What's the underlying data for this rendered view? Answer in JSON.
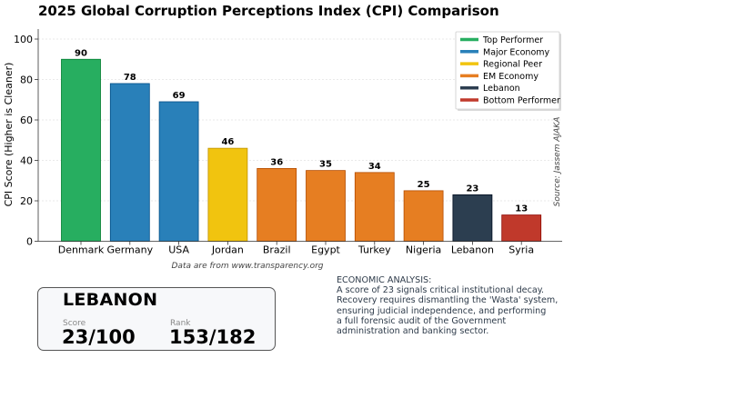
{
  "chart_data": {
    "type": "bar",
    "title": "2025 Global Corruption Perceptions Index (CPI) Comparison",
    "xlabel": "",
    "ylabel": "CPI Score (Higher is Cleaner)",
    "ylim": [
      0,
      105
    ],
    "yticks": [
      0,
      20,
      40,
      60,
      80,
      100
    ],
    "grid": true,
    "categories": [
      "Denmark",
      "Germany",
      "USA",
      "Jordan",
      "Brazil",
      "Egypt",
      "Turkey",
      "Nigeria",
      "Lebanon",
      "Syria"
    ],
    "values": [
      90,
      78,
      69,
      46,
      36,
      35,
      34,
      25,
      23,
      13
    ],
    "groups": [
      "Top Performer",
      "Major Economy",
      "Major Economy",
      "Regional Peer",
      "EM Economy",
      "EM Economy",
      "EM Economy",
      "EM Economy",
      "Lebanon",
      "Bottom Performer"
    ],
    "legend": {
      "placement": "top-right",
      "entries": [
        {
          "label": "Top Performer",
          "color": "#27ae60"
        },
        {
          "label": "Major Economy",
          "color": "#2980b9"
        },
        {
          "label": "Regional Peer",
          "color": "#f1c40f"
        },
        {
          "label": "EM Economy",
          "color": "#e67e22"
        },
        {
          "label": "Lebanon",
          "color": "#2c3e50"
        },
        {
          "label": "Bottom Performer",
          "color": "#c0392b"
        }
      ]
    },
    "annotations": {
      "data_note": "Data are from www.transparency.org",
      "source": "Source: Jassem AJAKA"
    }
  },
  "card": {
    "country": "LEBANON",
    "score_label": "Score",
    "score_value": "23/100",
    "rank_label": "Rank",
    "rank_value": "153/182"
  },
  "analysis": {
    "heading": "ECONOMIC ANALYSIS:",
    "lines": [
      "A score of 23 signals critical institutional decay.",
      "Recovery requires dismantling the 'Wasta' system,",
      "ensuring judicial independence, and performing",
      "a full forensic audit of the Government",
      "administration and banking sector."
    ]
  }
}
